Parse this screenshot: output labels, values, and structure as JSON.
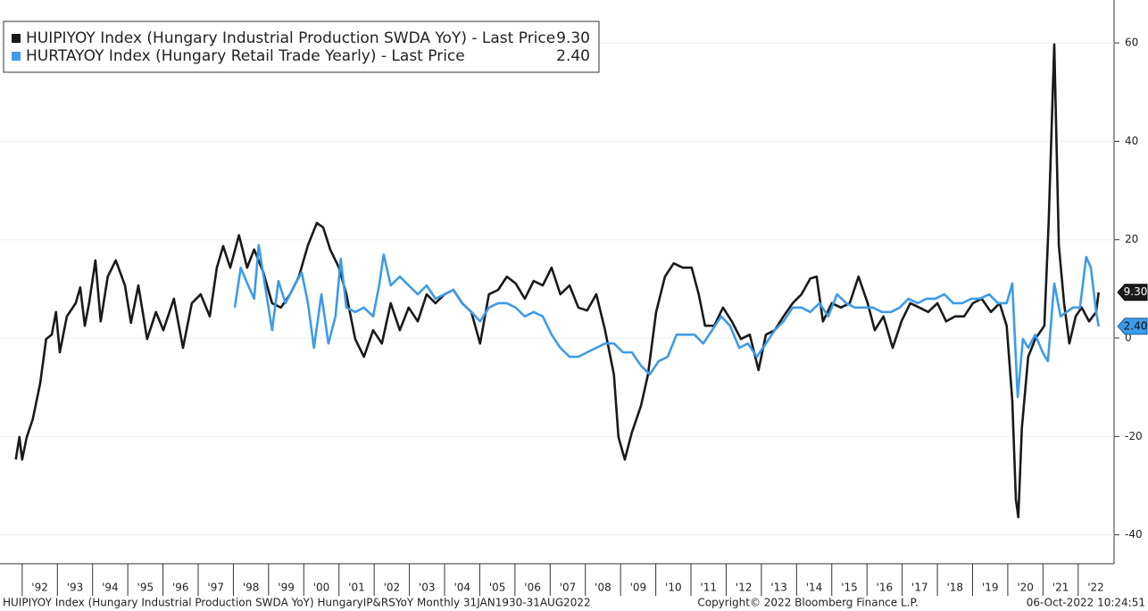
{
  "chart_data": {
    "type": "line",
    "xlim": [
      1991.37,
      2023.02
    ],
    "ylim": [
      -45.87,
      68.72
    ],
    "xticks": [
      {
        "value": 1992,
        "label": "'92"
      },
      {
        "value": 1993,
        "label": "'93"
      },
      {
        "value": 1994,
        "label": "'94"
      },
      {
        "value": 1995,
        "label": "'95"
      },
      {
        "value": 1996,
        "label": "'96"
      },
      {
        "value": 1997,
        "label": "'97"
      },
      {
        "value": 1998,
        "label": "'98"
      },
      {
        "value": 1999,
        "label": "'99"
      },
      {
        "value": 2000,
        "label": "'00"
      },
      {
        "value": 2001,
        "label": "'01"
      },
      {
        "value": 2002,
        "label": "'02"
      },
      {
        "value": 2003,
        "label": "'03"
      },
      {
        "value": 2004,
        "label": "'04"
      },
      {
        "value": 2005,
        "label": "'05"
      },
      {
        "value": 2006,
        "label": "'06"
      },
      {
        "value": 2007,
        "label": "'07"
      },
      {
        "value": 2008,
        "label": "'08"
      },
      {
        "value": 2009,
        "label": "'09"
      },
      {
        "value": 2010,
        "label": "'10"
      },
      {
        "value": 2011,
        "label": "'11"
      },
      {
        "value": 2012,
        "label": "'12"
      },
      {
        "value": 2013,
        "label": "'13"
      },
      {
        "value": 2014,
        "label": "'14"
      },
      {
        "value": 2015,
        "label": "'15"
      },
      {
        "value": 2016,
        "label": "'16"
      },
      {
        "value": 2017,
        "label": "'17"
      },
      {
        "value": 2018,
        "label": "'18"
      },
      {
        "value": 2019,
        "label": "'19"
      },
      {
        "value": 2020,
        "label": "'20"
      },
      {
        "value": 2021,
        "label": "'21"
      },
      {
        "value": 2022,
        "label": "'22"
      }
    ],
    "yticks": [
      -40,
      -20,
      0,
      20,
      40,
      60
    ],
    "series": [
      {
        "name": "HUIPIYOY Index (Hungary Industrial Production SWDA YoY) - Last Price",
        "last_label": "9.30",
        "color": "#1a1a1a",
        "x": [
          1991.82,
          1991.92,
          1992.0,
          1992.13,
          1992.3,
          1992.51,
          1992.68,
          1992.84,
          1992.96,
          1993.07,
          1993.27,
          1993.52,
          1993.65,
          1993.78,
          1993.9,
          1994.08,
          1994.23,
          1994.43,
          1994.66,
          1994.92,
          1995.09,
          1995.3,
          1995.55,
          1995.8,
          1996.01,
          1996.31,
          1996.57,
          1996.82,
          1997.07,
          1997.33,
          1997.53,
          1997.71,
          1997.91,
          1998.16,
          1998.39,
          1998.59,
          1998.85,
          1999.1,
          1999.35,
          1999.61,
          1999.86,
          2000.12,
          2000.37,
          2000.55,
          2000.75,
          2001.0,
          2001.21,
          2001.46,
          2001.71,
          2001.97,
          2002.22,
          2002.47,
          2002.73,
          2002.98,
          2003.24,
          2003.49,
          2003.74,
          2004.0,
          2004.25,
          2004.5,
          2004.76,
          2005.01,
          2005.26,
          2005.52,
          2005.77,
          2006.02,
          2006.28,
          2006.53,
          2006.79,
          2007.04,
          2007.29,
          2007.55,
          2007.8,
          2008.05,
          2008.31,
          2008.56,
          2008.81,
          2008.94,
          2009.12,
          2009.32,
          2009.58,
          2009.78,
          2010.01,
          2010.26,
          2010.51,
          2010.77,
          2011.02,
          2011.22,
          2011.4,
          2011.66,
          2011.91,
          2012.16,
          2012.42,
          2012.67,
          2012.92,
          2013.13,
          2013.38,
          2013.63,
          2013.89,
          2014.14,
          2014.39,
          2014.57,
          2014.75,
          2015.0,
          2015.26,
          2015.51,
          2015.76,
          2016.02,
          2016.22,
          2016.47,
          2016.73,
          2016.98,
          2017.23,
          2017.49,
          2017.74,
          2018.0,
          2018.25,
          2018.5,
          2018.76,
          2019.01,
          2019.26,
          2019.52,
          2019.77,
          2019.97,
          2020.13,
          2020.23,
          2020.3,
          2020.4,
          2020.58,
          2020.78,
          2021.04,
          2021.16,
          2021.32,
          2021.45,
          2021.6,
          2021.75,
          2021.93,
          2022.1,
          2022.31,
          2022.51,
          2022.58
        ],
        "values": [
          -24.7,
          -20.1,
          -24.7,
          -20.1,
          -16.5,
          -9.2,
          -0.2,
          0.7,
          5.3,
          -2.9,
          4.4,
          7.1,
          10.3,
          2.5,
          7.1,
          15.8,
          3.4,
          12.5,
          15.8,
          10.7,
          3.1,
          10.7,
          -0.2,
          5.3,
          1.6,
          8.0,
          -2.0,
          7.1,
          8.9,
          4.4,
          14.3,
          18.7,
          14.3,
          20.9,
          14.3,
          18.0,
          13.4,
          7.1,
          6.2,
          8.9,
          12.5,
          18.9,
          23.4,
          22.5,
          18.0,
          14.3,
          8.9,
          -0.2,
          -3.8,
          1.6,
          -1.1,
          7.1,
          1.6,
          6.2,
          3.4,
          8.9,
          7.1,
          8.9,
          9.8,
          7.1,
          5.3,
          -1.1,
          8.9,
          9.8,
          12.5,
          11.1,
          8.0,
          11.6,
          10.7,
          14.3,
          8.9,
          10.7,
          6.2,
          5.6,
          8.9,
          1.6,
          -7.4,
          -20.1,
          -24.7,
          -19.2,
          -13.8,
          -7.4,
          5.3,
          12.5,
          15.2,
          14.3,
          14.3,
          8.9,
          2.5,
          2.5,
          6.2,
          3.4,
          -0.2,
          0.7,
          -6.5,
          0.7,
          1.6,
          4.4,
          7.1,
          8.9,
          12.1,
          12.5,
          3.4,
          7.1,
          6.2,
          7.1,
          12.5,
          7.1,
          1.6,
          4.4,
          -2.0,
          3.4,
          7.1,
          6.2,
          5.3,
          7.1,
          3.4,
          4.4,
          4.4,
          7.1,
          8.0,
          5.3,
          7.1,
          2.5,
          -12.8,
          -32.8,
          -36.4,
          -18.3,
          -3.8,
          -0.2,
          2.5,
          23.4,
          59.7,
          18.9,
          7.1,
          -1.1,
          4.4,
          6.2,
          3.4,
          5.3,
          9.3
        ]
      },
      {
        "name": "HURTAYOY Index (Hungary Retail Trade Yearly) - Last Price",
        "last_label": "2.40",
        "color": "#3d9be9",
        "x": [
          1998.04,
          1998.21,
          1998.42,
          1998.59,
          1998.72,
          1998.9,
          1999.1,
          1999.28,
          1999.48,
          1999.74,
          1999.94,
          2000.12,
          2000.29,
          2000.5,
          2000.7,
          2000.9,
          2001.05,
          2001.21,
          2001.46,
          2001.71,
          2001.97,
          2002.14,
          2002.27,
          2002.47,
          2002.73,
          2002.98,
          2003.24,
          2003.49,
          2003.74,
          2004.0,
          2004.25,
          2004.5,
          2004.76,
          2005.01,
          2005.26,
          2005.52,
          2005.77,
          2006.02,
          2006.28,
          2006.53,
          2006.79,
          2007.04,
          2007.29,
          2007.55,
          2007.8,
          2008.05,
          2008.31,
          2008.56,
          2008.81,
          2009.07,
          2009.32,
          2009.58,
          2009.83,
          2010.08,
          2010.34,
          2010.59,
          2010.84,
          2011.1,
          2011.35,
          2011.6,
          2011.86,
          2012.11,
          2012.37,
          2012.62,
          2012.87,
          2013.13,
          2013.38,
          2013.63,
          2013.89,
          2014.14,
          2014.39,
          2014.65,
          2014.9,
          2015.15,
          2015.41,
          2015.66,
          2015.92,
          2016.17,
          2016.42,
          2016.68,
          2016.93,
          2017.18,
          2017.44,
          2017.69,
          2017.94,
          2018.2,
          2018.45,
          2018.71,
          2018.96,
          2019.21,
          2019.47,
          2019.72,
          2019.97,
          2020.13,
          2020.28,
          2020.43,
          2020.58,
          2020.78,
          2020.99,
          2021.14,
          2021.32,
          2021.5,
          2021.67,
          2021.85,
          2022.05,
          2022.23,
          2022.36,
          2022.51,
          2022.58
        ],
        "values": [
          6.2,
          14.3,
          10.7,
          8.0,
          18.9,
          10.7,
          1.6,
          11.6,
          7.1,
          10.7,
          13.4,
          7.1,
          -2.0,
          8.9,
          -1.1,
          4.4,
          16.1,
          6.2,
          5.3,
          6.2,
          4.4,
          10.7,
          17.0,
          10.7,
          12.5,
          10.7,
          8.9,
          10.7,
          8.0,
          8.9,
          9.8,
          7.1,
          5.3,
          3.4,
          6.2,
          7.1,
          7.1,
          6.2,
          4.4,
          5.3,
          4.4,
          0.7,
          -2.0,
          -3.8,
          -3.8,
          -2.9,
          -2.0,
          -1.1,
          -1.1,
          -2.9,
          -2.9,
          -5.6,
          -7.4,
          -4.7,
          -3.8,
          0.7,
          0.7,
          0.7,
          -1.1,
          1.6,
          4.4,
          2.5,
          -2.0,
          -1.1,
          -3.8,
          -1.1,
          1.6,
          3.4,
          6.2,
          6.2,
          5.3,
          7.1,
          4.4,
          8.9,
          7.1,
          6.2,
          6.2,
          6.2,
          5.3,
          5.3,
          6.2,
          8.0,
          7.1,
          8.0,
          8.0,
          8.9,
          7.1,
          7.1,
          8.0,
          8.0,
          8.9,
          7.1,
          7.1,
          11.1,
          -12.0,
          -0.2,
          -2.0,
          0.7,
          -2.9,
          -4.7,
          11.1,
          4.4,
          5.3,
          6.2,
          6.2,
          16.5,
          14.3,
          5.3,
          2.4
        ]
      }
    ],
    "footer": {
      "left": "HUIPIYOY Index (Hungary Industrial Production SWDA YoY) HungaryIP&RSYoY  Monthly 31JAN1930-31AUG2022",
      "center": "Copyright© 2022 Bloomberg Finance L.P.",
      "right": "06-Oct-2022 10:24:51"
    }
  }
}
